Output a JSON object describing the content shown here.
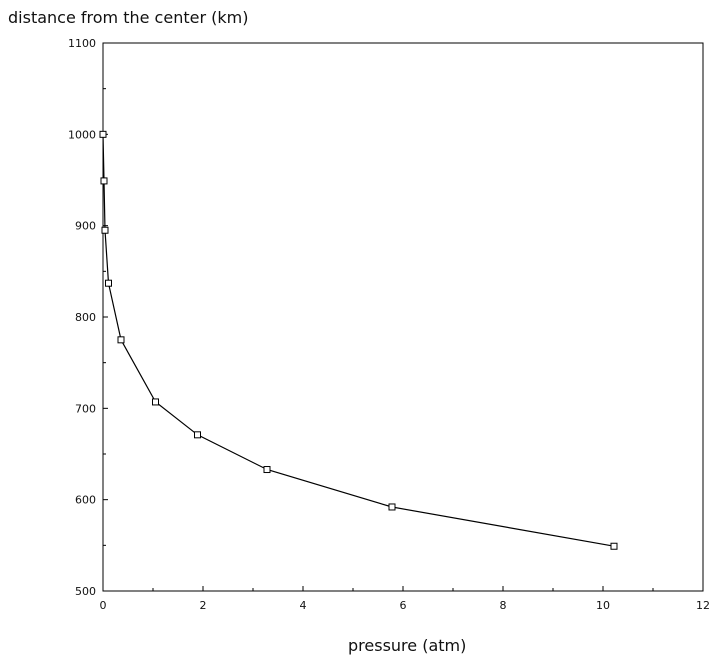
{
  "chart_data": {
    "type": "line",
    "title": "",
    "xlabel": "pressure (atm)",
    "ylabel": "distance from the center (km)",
    "xlim": [
      0,
      12
    ],
    "ylim": [
      500,
      1100
    ],
    "xticks": [
      0,
      2,
      4,
      6,
      8,
      10,
      12
    ],
    "yticks": [
      500,
      600,
      700,
      800,
      900,
      1000,
      1100
    ],
    "grid": false,
    "series": [
      {
        "marker": "open-square",
        "color": "#000000",
        "x": [
          0.0,
          0.02,
          0.04,
          0.11,
          0.36,
          1.05,
          1.89,
          3.28,
          5.78,
          10.22
        ],
        "y": [
          1000,
          949,
          895,
          837,
          775,
          707,
          671,
          633,
          592,
          549
        ]
      }
    ]
  }
}
